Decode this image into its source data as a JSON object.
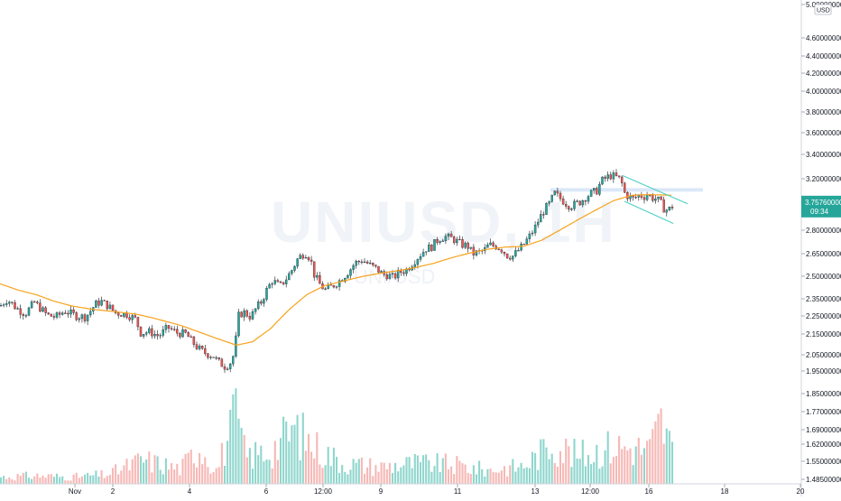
{
  "chart_data": {
    "type": "candlestick",
    "symbol": "UNIUSD, 1H",
    "subtitle": "UNI/USD",
    "price_axis": {
      "unit": "USD",
      "scale": "log",
      "range": [
        1.45,
        5.0
      ],
      "ticks": [
        "5.00000000",
        "4.60000000",
        "4.40000000",
        "4.20000000",
        "4.00000000",
        "3.80000000",
        "3.60000000",
        "3.40000000",
        "3.20000000",
        "3.00000000",
        "2.80000000",
        "2.65000000",
        "2.50000000",
        "2.35000000",
        "2.25000000",
        "2.15000000",
        "2.05000000",
        "1.95000000",
        "1.85000000",
        "1.77000000",
        "1.69000000",
        "1.62000000",
        "1.55000000",
        "1.48500000"
      ]
    },
    "time_axis": {
      "ticks": [
        "Nov",
        "2",
        "4",
        "6",
        "12:00",
        "9",
        "11",
        "13",
        "12:00",
        "16",
        "18",
        "20"
      ]
    },
    "last_price": {
      "value": "3.75760000",
      "countdown": "09:34",
      "color": "#26a69a"
    },
    "colors": {
      "up": "#26a69a",
      "down": "#ef5350",
      "wick": "#131722",
      "ma": "#f7a21b",
      "channel": "#4dd0c4",
      "zone": "#cfe0f5",
      "vol_up": "#8fd6cd",
      "vol_down": "#f6b8b5"
    },
    "price_path": [
      [
        0,
        2.38
      ],
      [
        8,
        2.45
      ],
      [
        18,
        2.36
      ],
      [
        28,
        2.3
      ],
      [
        38,
        2.42
      ],
      [
        52,
        2.29
      ],
      [
        62,
        2.27
      ],
      [
        72,
        2.33
      ],
      [
        85,
        2.28
      ],
      [
        95,
        2.27
      ],
      [
        106,
        2.4
      ],
      [
        112,
        2.43
      ],
      [
        120,
        2.38
      ],
      [
        128,
        2.31
      ],
      [
        140,
        2.3
      ],
      [
        150,
        2.25
      ],
      [
        156,
        2.12
      ],
      [
        166,
        2.13
      ],
      [
        176,
        2.09
      ],
      [
        186,
        2.17
      ],
      [
        196,
        2.12
      ],
      [
        206,
        2.11
      ],
      [
        214,
        2.03
      ],
      [
        220,
        1.98
      ],
      [
        228,
        1.94
      ],
      [
        236,
        1.92
      ],
      [
        242,
        1.87
      ],
      [
        250,
        1.83
      ],
      [
        256,
        1.87
      ],
      [
        260,
        1.95
      ],
      [
        264,
        2.28
      ],
      [
        270,
        2.32
      ],
      [
        278,
        2.27
      ],
      [
        284,
        2.36
      ],
      [
        290,
        2.43
      ],
      [
        296,
        2.56
      ],
      [
        302,
        2.66
      ],
      [
        310,
        2.59
      ],
      [
        318,
        2.69
      ],
      [
        324,
        2.79
      ],
      [
        330,
        2.92
      ],
      [
        338,
        3.0
      ],
      [
        344,
        2.92
      ],
      [
        348,
        2.73
      ],
      [
        354,
        2.62
      ],
      [
        360,
        2.55
      ],
      [
        366,
        2.58
      ],
      [
        372,
        2.62
      ],
      [
        378,
        2.67
      ],
      [
        386,
        2.76
      ],
      [
        394,
        2.87
      ],
      [
        402,
        2.9
      ],
      [
        410,
        2.84
      ],
      [
        418,
        2.79
      ],
      [
        424,
        2.73
      ],
      [
        430,
        2.72
      ],
      [
        436,
        2.69
      ],
      [
        442,
        2.75
      ],
      [
        450,
        2.78
      ],
      [
        456,
        2.85
      ],
      [
        464,
        2.95
      ],
      [
        472,
        3.05
      ],
      [
        478,
        3.07
      ],
      [
        486,
        3.18
      ],
      [
        494,
        3.21
      ],
      [
        500,
        3.19
      ],
      [
        506,
        3.15
      ],
      [
        512,
        3.1
      ],
      [
        518,
        3.09
      ],
      [
        524,
        2.98
      ],
      [
        530,
        3.0
      ],
      [
        536,
        3.02
      ],
      [
        542,
        3.1
      ],
      [
        550,
        3.08
      ],
      [
        556,
        3.04
      ],
      [
        562,
        2.96
      ],
      [
        568,
        2.95
      ],
      [
        574,
        3.02
      ],
      [
        580,
        3.1
      ],
      [
        586,
        3.2
      ],
      [
        592,
        3.32
      ],
      [
        598,
        3.48
      ],
      [
        604,
        3.62
      ],
      [
        610,
        3.72
      ],
      [
        614,
        3.88
      ],
      [
        620,
        3.8
      ],
      [
        626,
        3.72
      ],
      [
        632,
        3.66
      ],
      [
        638,
        3.7
      ],
      [
        644,
        3.74
      ],
      [
        650,
        3.82
      ],
      [
        656,
        3.88
      ],
      [
        662,
        3.92
      ],
      [
        666,
        4.08
      ],
      [
        670,
        4.12
      ],
      [
        676,
        4.18
      ],
      [
        682,
        4.16
      ],
      [
        688,
        4.1
      ],
      [
        692,
        3.88
      ],
      [
        696,
        3.82
      ],
      [
        702,
        3.78
      ],
      [
        708,
        3.84
      ],
      [
        714,
        3.82
      ],
      [
        718,
        3.86
      ],
      [
        722,
        3.8
      ],
      [
        728,
        3.78
      ],
      [
        732,
        3.72
      ],
      [
        736,
        3.62
      ],
      [
        740,
        3.6
      ],
      [
        744,
        3.64
      ],
      [
        748,
        3.72
      ]
    ],
    "ma_path": [
      [
        0,
        2.62
      ],
      [
        20,
        2.55
      ],
      [
        40,
        2.5
      ],
      [
        60,
        2.43
      ],
      [
        80,
        2.38
      ],
      [
        100,
        2.35
      ],
      [
        120,
        2.33
      ],
      [
        150,
        2.3
      ],
      [
        170,
        2.26
      ],
      [
        200,
        2.19
      ],
      [
        220,
        2.13
      ],
      [
        240,
        2.07
      ],
      [
        262,
        2.01
      ],
      [
        280,
        2.04
      ],
      [
        300,
        2.16
      ],
      [
        320,
        2.34
      ],
      [
        340,
        2.5
      ],
      [
        360,
        2.6
      ],
      [
        380,
        2.65
      ],
      [
        400,
        2.7
      ],
      [
        420,
        2.74
      ],
      [
        440,
        2.77
      ],
      [
        460,
        2.81
      ],
      [
        480,
        2.86
      ],
      [
        500,
        2.93
      ],
      [
        520,
        2.99
      ],
      [
        540,
        3.04
      ],
      [
        560,
        3.07
      ],
      [
        580,
        3.08
      ],
      [
        600,
        3.16
      ],
      [
        620,
        3.3
      ],
      [
        640,
        3.45
      ],
      [
        660,
        3.6
      ],
      [
        680,
        3.75
      ],
      [
        700,
        3.84
      ],
      [
        720,
        3.85
      ],
      [
        745,
        3.84
      ]
    ],
    "volume_path": [
      [
        0,
        0.1
      ],
      [
        40,
        0.12
      ],
      [
        80,
        0.1
      ],
      [
        120,
        0.14
      ],
      [
        158,
        0.35
      ],
      [
        200,
        0.22
      ],
      [
        222,
        0.55
      ],
      [
        240,
        0.2
      ],
      [
        262,
        1.0
      ],
      [
        272,
        0.4
      ],
      [
        300,
        0.48
      ],
      [
        326,
        0.8
      ],
      [
        348,
        0.55
      ],
      [
        380,
        0.3
      ],
      [
        420,
        0.25
      ],
      [
        460,
        0.3
      ],
      [
        500,
        0.28
      ],
      [
        540,
        0.2
      ],
      [
        580,
        0.26
      ],
      [
        600,
        0.45
      ],
      [
        612,
        0.6
      ],
      [
        640,
        0.4
      ],
      [
        680,
        0.55
      ],
      [
        720,
        0.5
      ],
      [
        732,
        0.9
      ],
      [
        748,
        0.4
      ]
    ],
    "resistance_zone": [
      3.9,
      3.96
    ],
    "channel_upper": [
      [
        690,
        4.18
      ],
      [
        762,
        3.7
      ]
    ],
    "channel_lower": [
      [
        692,
        3.74
      ],
      [
        746,
        3.4
      ]
    ]
  }
}
